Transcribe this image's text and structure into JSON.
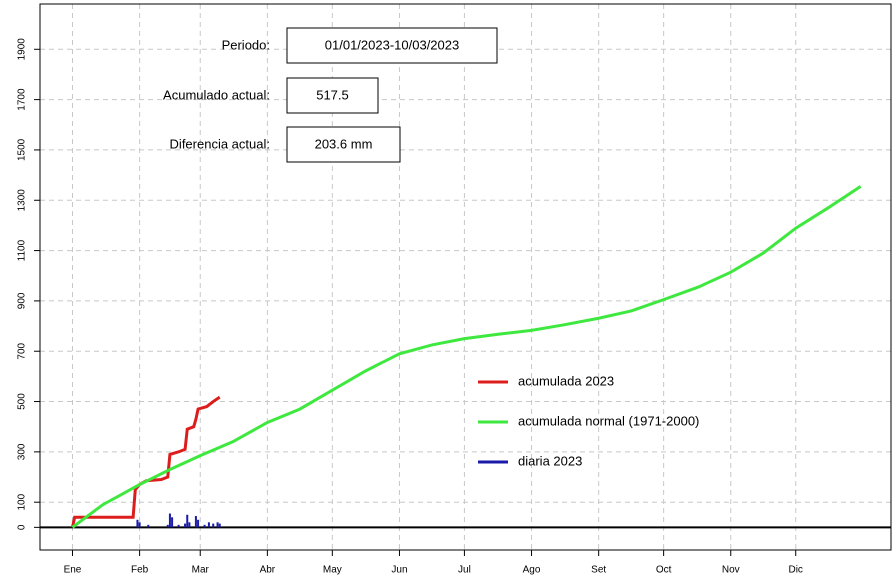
{
  "chart_data": {
    "type": "line",
    "xlim": [
      -14,
      379
    ],
    "xticks": [
      {
        "value": 1,
        "label": "Ene"
      },
      {
        "value": 32,
        "label": "Feb"
      },
      {
        "value": 60,
        "label": "Mar"
      },
      {
        "value": 91,
        "label": "Abr"
      },
      {
        "value": 121,
        "label": "May"
      },
      {
        "value": 152,
        "label": "Jun"
      },
      {
        "value": 182,
        "label": "Jul"
      },
      {
        "value": 213,
        "label": "Ago"
      },
      {
        "value": 244,
        "label": "Set"
      },
      {
        "value": 274,
        "label": "Oct"
      },
      {
        "value": 305,
        "label": "Nov"
      },
      {
        "value": 335,
        "label": "Dic"
      }
    ],
    "ylim": [
      -90,
      2080
    ],
    "yticks": [
      0,
      100,
      300,
      500,
      700,
      900,
      1100,
      1300,
      1500,
      1700,
      1900
    ],
    "grid": true,
    "zero_line": true,
    "annotations": [
      {
        "label": "Periodo:",
        "value": "01/01/2023-10/03/2023"
      },
      {
        "label": "Acumulado actual:",
        "value": "517.5"
      },
      {
        "label": "Diferencia actual:",
        "value": "203.6 mm"
      }
    ],
    "series": [
      {
        "name": "acumulada 2023",
        "color": "#dd1c1c",
        "style": "line",
        "x": [
          1,
          2,
          29,
          30,
          32,
          35,
          42,
          45,
          46,
          50,
          53,
          54,
          57,
          58,
          59,
          63,
          66,
          69
        ],
        "values": [
          0,
          40,
          40,
          150,
          170,
          185,
          190,
          200,
          290,
          300,
          310,
          390,
          400,
          430,
          470,
          480,
          500,
          517.5
        ]
      },
      {
        "name": "acumulada normal (1971-2000)",
        "color": "#3ee83e",
        "style": "line",
        "x": [
          1,
          15,
          32,
          46,
          60,
          75,
          91,
          106,
          121,
          136,
          152,
          167,
          182,
          198,
          213,
          228,
          244,
          259,
          274,
          290,
          305,
          320,
          335,
          350,
          365
        ],
        "values": [
          0,
          90,
          170,
          230,
          285,
          340,
          417,
          470,
          545,
          620,
          690,
          725,
          750,
          768,
          783,
          805,
          831,
          860,
          905,
          955,
          1014,
          1090,
          1189,
          1270,
          1355
        ]
      },
      {
        "name": "diaria 2023",
        "color": "#1a1aa8",
        "style": "spikes",
        "x": [
          31,
          32,
          36,
          45,
          46,
          47,
          50,
          53,
          54,
          55,
          58,
          59,
          62,
          64,
          66,
          68,
          69
        ],
        "values": [
          30,
          20,
          10,
          10,
          55,
          40,
          10,
          15,
          50,
          20,
          45,
          30,
          10,
          20,
          15,
          20,
          15
        ]
      }
    ]
  }
}
